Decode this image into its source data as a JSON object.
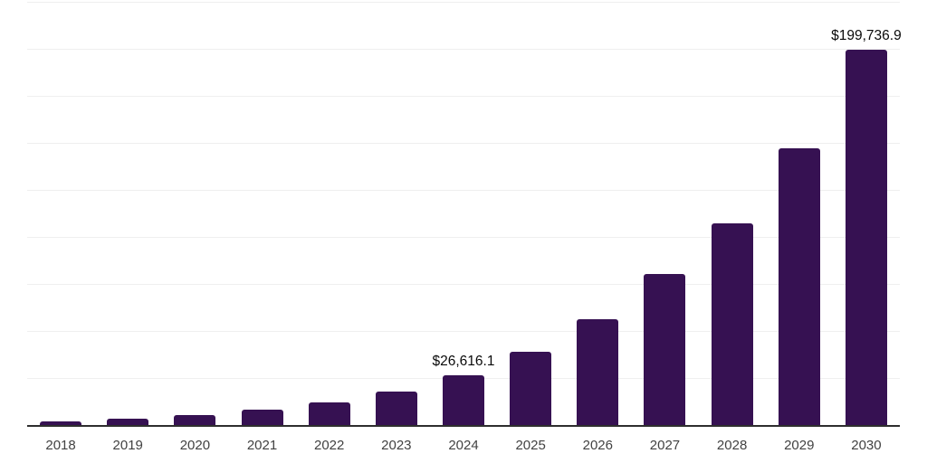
{
  "chart_data": {
    "type": "bar",
    "title": "",
    "categories": [
      "2018",
      "2019",
      "2020",
      "2021",
      "2022",
      "2023",
      "2024",
      "2025",
      "2026",
      "2027",
      "2028",
      "2029",
      "2030"
    ],
    "values": [
      2100,
      3350,
      5200,
      8000,
      11900,
      17800,
      26616.1,
      39000,
      56300,
      80300,
      107200,
      147100,
      199736.9
    ],
    "annotations": [
      {
        "category": "2024",
        "text": "$26,616.1"
      },
      {
        "category": "2030",
        "text": "$199,736.9"
      }
    ],
    "ylim": [
      0,
      225000
    ],
    "gridline_interval": 25000,
    "grid": "horizontal",
    "legend": "none",
    "colors": {
      "bar": "#361152",
      "gridline": "#efefef",
      "axis_line": "#2e2e2e",
      "tick_label": "#424242",
      "annotation": "#0a0a0a",
      "background": "#ffffff"
    }
  }
}
